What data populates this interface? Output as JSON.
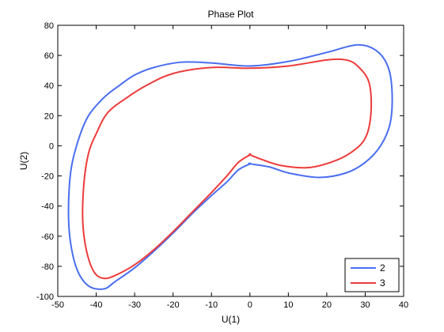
{
  "chart_data": {
    "type": "line",
    "title": "Phase Plot",
    "xlabel": "U(1)",
    "ylabel": "U(2)",
    "xlim": [
      -50,
      40
    ],
    "ylim": [
      -100,
      80
    ],
    "xticks": [
      -50,
      -40,
      -30,
      -20,
      -10,
      0,
      10,
      20,
      30,
      40
    ],
    "yticks": [
      -100,
      -80,
      -60,
      -40,
      -20,
      0,
      20,
      40,
      60,
      80
    ],
    "grid": false,
    "legend_position": "bottom-right",
    "series": [
      {
        "name": "2",
        "color": "#4a6ef0",
        "x": [
          0,
          -3,
          -6,
          -10,
          -15,
          -20,
          -25,
          -30,
          -35,
          -38,
          -42,
          -45,
          -46.8,
          -47.2,
          -46.5,
          -44.5,
          -42,
          -38,
          -34,
          -30,
          -25,
          -18,
          -10,
          0,
          10,
          20,
          28,
          33,
          36,
          37,
          36.5,
          34,
          30,
          25,
          18,
          10,
          5,
          0
        ],
        "y": [
          -12,
          -16,
          -24,
          -33,
          -45,
          -58,
          -70,
          -81,
          -90,
          -95,
          -93,
          -82,
          -62,
          -40,
          -15,
          5,
          20,
          32,
          40,
          47,
          52,
          55.5,
          55,
          53,
          56,
          62,
          67,
          63,
          52,
          35,
          15,
          0,
          -11,
          -18,
          -21,
          -18,
          -14,
          -12
        ]
      },
      {
        "name": "3",
        "color": "#ee3b3b",
        "x": [
          0,
          -3,
          -6,
          -10,
          -15,
          -20,
          -25,
          -30,
          -35,
          -38,
          -40.5,
          -42.5,
          -43.5,
          -43.2,
          -42,
          -40,
          -37,
          -32,
          -27,
          -20,
          -10,
          0,
          10,
          20,
          25,
          28,
          31,
          31.5,
          30,
          26,
          21,
          15,
          8,
          3,
          0
        ],
        "y": [
          -6,
          -11,
          -20,
          -31,
          -44,
          -57,
          -69,
          -79,
          -86,
          -88,
          -84,
          -70,
          -50,
          -25,
          -5,
          8,
          22,
          32,
          40,
          48,
          52,
          51.5,
          53,
          57,
          57,
          53,
          42,
          22,
          5,
          -5,
          -11,
          -14.5,
          -13,
          -9,
          -6
        ]
      }
    ]
  }
}
